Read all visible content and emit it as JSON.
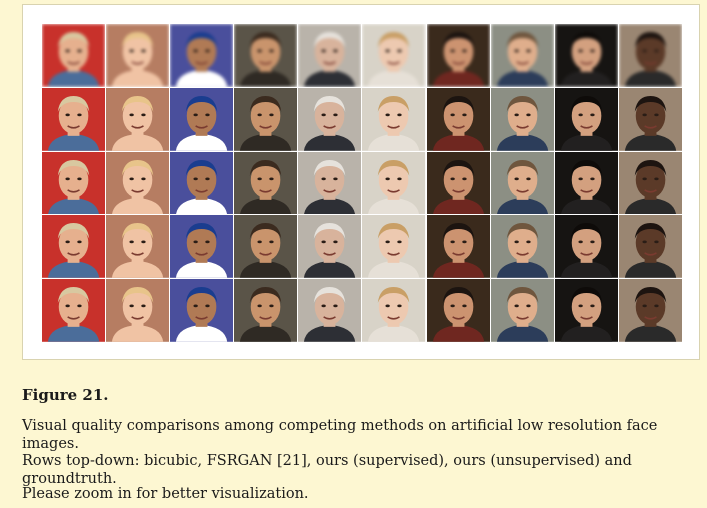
{
  "figure": {
    "label": "Figure 21.",
    "caption_lines": [
      "Visual quality comparisons among competing methods on artificial low resolution face images.",
      "Rows top-down: bicubic, FSRGAN [21], ours (supervised), ours (unsupervised) and groundtruth.",
      "Please zoom in for better visualization."
    ]
  },
  "grid": {
    "rows": 5,
    "columns": 10,
    "blurred_rows": [
      0
    ],
    "subjects": [
      {
        "bg": "#c8312b",
        "skin": "#e6b08e",
        "hair": "#d8c8a0",
        "shirt": "#4b6d9a"
      },
      {
        "bg": "#b67d62",
        "skin": "#f0c3a4",
        "hair": "#e8c48a",
        "shirt": "#f0c3a4"
      },
      {
        "bg": "#4a4f9c",
        "skin": "#b07a55",
        "hair": "#1a3d8f",
        "shirt": "#ffffff"
      },
      {
        "bg": "#5a5448",
        "skin": "#c9946c",
        "hair": "#3b2b1f",
        "shirt": "#2f2a24"
      },
      {
        "bg": "#b9b3aa",
        "skin": "#d8b39c",
        "hair": "#e6e2dc",
        "shirt": "#2d2f35"
      },
      {
        "bg": "#d8d3c8",
        "skin": "#edc9b0",
        "hair": "#c99f66",
        "shirt": "#e6e0d7"
      },
      {
        "bg": "#3a2a1c",
        "skin": "#cc9370",
        "hair": "#1c1410",
        "shirt": "#6f2720"
      },
      {
        "bg": "#8c8f84",
        "skin": "#dfae8c",
        "hair": "#6f563e",
        "shirt": "#2c3d5a"
      },
      {
        "bg": "#161412",
        "skin": "#d3a07f",
        "hair": "#0e0b09",
        "shirt": "#222020"
      },
      {
        "bg": "#9a8672",
        "skin": "#5b3a28",
        "hair": "#1d1410",
        "shirt": "#2a2a2a"
      }
    ]
  }
}
